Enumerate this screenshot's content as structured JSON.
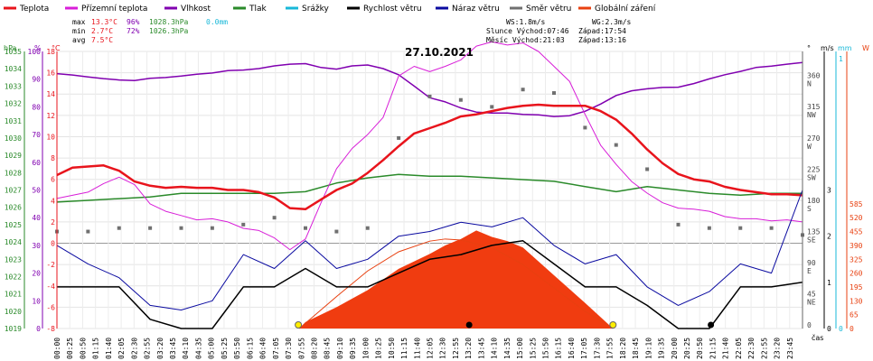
{
  "chart_data": {
    "type": "line",
    "title": "27.10.2021",
    "legend": [
      {
        "label": "Teplota",
        "color": "#e8141c"
      },
      {
        "label": "Přízemní teplota",
        "color": "#d81ed8"
      },
      {
        "label": "Vlhkost",
        "color": "#8000b0"
      },
      {
        "label": "Tlak",
        "color": "#2a8a2a"
      },
      {
        "label": "Srážky",
        "color": "#18b8d8"
      },
      {
        "label": "Rychlost větru",
        "color": "#000000"
      },
      {
        "label": "Náraz větru",
        "color": "#0a0aa0"
      },
      {
        "label": "Směr větru",
        "color": "#707070"
      },
      {
        "label": "Globální záření",
        "color": "#e84010"
      }
    ],
    "stats": {
      "max": {
        "label": "max",
        "temp": "13.3°C",
        "hum": "96%",
        "press": "1028.3hPa",
        "rain": "0.0mm"
      },
      "min": {
        "label": "min",
        "temp": "2.7°C",
        "hum": "72%",
        "press": "1026.3hPa"
      },
      "avg": {
        "label": "avg",
        "temp": "7.5°C"
      }
    },
    "info": {
      "ws": "WS:1.8m/s",
      "wg": "WG:2.3m/s",
      "sun": "Slunce Východ:07:46",
      "sun_set": "Západ:17:54",
      "moon": "Měsíc Východ:21:03",
      "moon_set": "Západ:13:16"
    },
    "axes": {
      "hpa": {
        "label": "hPa",
        "ticks": [
          "1035",
          "1034",
          "1033",
          "1032",
          "1031",
          "1030",
          "1029",
          "1028",
          "1027",
          "1026",
          "1025",
          "1024",
          "1023",
          "1022",
          "1021",
          "1020",
          "1019"
        ]
      },
      "pct": {
        "label": "%",
        "ticks": [
          "100",
          "90",
          "80",
          "70",
          "60",
          "50",
          "40",
          "30",
          "20",
          "10",
          "0"
        ]
      },
      "temp": {
        "label": "°C",
        "ticks": [
          "18",
          "16",
          "14",
          "12",
          "10",
          "8",
          "6",
          "4",
          "2",
          "0",
          "-2",
          "-4",
          "-6",
          "-8"
        ]
      },
      "dir": {
        "label": "°",
        "ticks": [
          {
            "deg": "360",
            "card": "N"
          },
          {
            "deg": "315",
            "card": "NW"
          },
          {
            "deg": "270",
            "card": "W"
          },
          {
            "deg": "225",
            "card": "SW"
          },
          {
            "deg": "180",
            "card": "S"
          },
          {
            "deg": "135",
            "card": "SE"
          },
          {
            "deg": "90",
            "card": "E"
          },
          {
            "deg": "45",
            "card": "NE"
          },
          {
            "deg": "0",
            "card": ""
          }
        ]
      },
      "ms": {
        "label": "m/s",
        "ticks": [
          "3",
          "2",
          "1",
          "0"
        ]
      },
      "mm": {
        "label": "mm",
        "ticks": [
          "1",
          "0"
        ]
      },
      "w": {
        "label": "W",
        "ticks": [
          "585",
          "520",
          "455",
          "390",
          "325",
          "260",
          "195",
          "130",
          "65",
          "0"
        ]
      },
      "x_unit": "čas",
      "x_ticks": [
        "00:00",
        "00:25",
        "00:50",
        "01:15",
        "01:40",
        "02:05",
        "02:30",
        "02:55",
        "03:20",
        "03:45",
        "04:10",
        "04:35",
        "05:00",
        "05:25",
        "05:50",
        "06:15",
        "06:40",
        "07:05",
        "07:30",
        "07:55",
        "08:20",
        "08:45",
        "09:10",
        "09:35",
        "10:00",
        "10:25",
        "10:50",
        "11:15",
        "11:40",
        "12:05",
        "12:30",
        "12:55",
        "13:20",
        "13:45",
        "14:10",
        "14:35",
        "15:00",
        "15:25",
        "15:50",
        "16:15",
        "16:40",
        "17:05",
        "17:30",
        "17:55",
        "18:20",
        "18:45",
        "19:10",
        "19:35",
        "20:00",
        "20:25",
        "20:50",
        "21:15",
        "21:40",
        "22:05",
        "22:30",
        "22:55",
        "23:20",
        "23:45"
      ]
    },
    "series": {
      "temperature": {
        "x": [
          0,
          0.5,
          1,
          1.5,
          2,
          2.5,
          3,
          3.5,
          4,
          4.5,
          5,
          5.5,
          6,
          6.5,
          7,
          7.5,
          8,
          8.5,
          9,
          9.5,
          10,
          10.5,
          11,
          11.5,
          12,
          12.5,
          13,
          13.5,
          14,
          14.5,
          15,
          15.5,
          16,
          16.5,
          17,
          17.5,
          18,
          18.5,
          19,
          19.5,
          20,
          20.5,
          21,
          21.5,
          22,
          22.5,
          23,
          23.5,
          24
        ],
        "y": [
          6.4,
          7.1,
          7.2,
          7.3,
          6.8,
          5.8,
          5.4,
          5.2,
          5.3,
          5.2,
          5.2,
          5.0,
          5.0,
          4.8,
          4.3,
          3.3,
          3.2,
          4.1,
          5.0,
          5.6,
          6.6,
          7.8,
          9.1,
          10.3,
          10.8,
          11.3,
          11.9,
          12.1,
          12.4,
          12.7,
          12.9,
          13.0,
          12.9,
          12.9,
          12.9,
          12.4,
          11.6,
          10.3,
          8.8,
          7.5,
          6.5,
          6.0,
          5.8,
          5.3,
          5.0,
          4.8,
          4.6,
          4.6,
          4.5
        ]
      },
      "ground_temp": {
        "x": [
          0,
          0.5,
          1,
          1.5,
          2,
          2.5,
          3,
          3.5,
          4,
          4.5,
          5,
          5.5,
          6,
          6.5,
          7,
          7.5,
          8,
          8.5,
          9,
          9.5,
          10,
          10.5,
          11,
          11.5,
          12,
          12.5,
          13,
          13.5,
          14,
          14.5,
          15,
          15.5,
          16,
          16.5,
          17,
          17.5,
          18,
          18.5,
          19,
          19.5,
          20,
          20.5,
          21,
          21.5,
          22,
          22.5,
          23,
          23.5,
          24
        ],
        "y": [
          4.2,
          4.5,
          4.8,
          5.6,
          6.2,
          5.5,
          3.7,
          3.0,
          2.6,
          2.2,
          2.3,
          2.0,
          1.4,
          1.2,
          0.5,
          -0.6,
          0.4,
          3.8,
          7.0,
          8.9,
          10.2,
          11.8,
          15.7,
          16.6,
          16.1,
          16.6,
          17.2,
          18.5,
          18.9,
          18.6,
          18.8,
          18.0,
          16.6,
          15.2,
          12.1,
          9.2,
          7.4,
          5.8,
          4.7,
          3.8,
          3.3,
          3.2,
          3.0,
          2.5,
          2.3,
          2.3,
          2.1,
          2.2,
          2.0
        ]
      },
      "humidity": {
        "x": [
          0,
          0.5,
          1,
          1.5,
          2,
          2.5,
          3,
          3.5,
          4,
          4.5,
          5,
          5.5,
          6,
          6.5,
          7,
          7.5,
          8,
          8.5,
          9,
          9.5,
          10,
          10.5,
          11,
          11.5,
          12,
          12.5,
          13,
          13.5,
          14,
          14.5,
          15,
          15.5,
          16,
          16.5,
          17,
          17.5,
          18,
          18.5,
          19,
          19.5,
          20,
          20.5,
          21,
          21.5,
          22,
          22.5,
          23,
          23.5,
          24
        ],
        "y": [
          92,
          91.5,
          90.8,
          90.2,
          89.7,
          89.5,
          90.3,
          90.6,
          91.1,
          91.8,
          92.2,
          93.1,
          93.3,
          93.8,
          94.8,
          95.4,
          95.6,
          94.2,
          93.6,
          94.8,
          95.1,
          93.8,
          91.6,
          87.5,
          83.3,
          81.8,
          79.6,
          78.1,
          77.8,
          77.8,
          77.3,
          77.1,
          76.5,
          76.8,
          78.4,
          81.0,
          84.1,
          85.8,
          86.5,
          87.0,
          87.1,
          88.4,
          90.1,
          91.6,
          92.8,
          94.2,
          94.7,
          95.4,
          96.0
        ]
      },
      "pressure": {
        "x": [
          0,
          1,
          2,
          3,
          4,
          5,
          6,
          7,
          8,
          9,
          10,
          11,
          12,
          13,
          14,
          15,
          16,
          17,
          18,
          19,
          20,
          21,
          22,
          23,
          24
        ],
        "y": [
          1026.3,
          1026.4,
          1026.5,
          1026.6,
          1026.8,
          1026.8,
          1026.8,
          1026.8,
          1026.9,
          1027.4,
          1027.7,
          1027.9,
          1027.8,
          1027.8,
          1027.7,
          1027.6,
          1027.5,
          1027.2,
          1026.9,
          1027.2,
          1027.0,
          1026.8,
          1026.7,
          1026.8,
          1026.8
        ]
      },
      "wind_speed": {
        "x": [
          0,
          1,
          2,
          3,
          4,
          5,
          6,
          7,
          8,
          9,
          10,
          11,
          12,
          13,
          14,
          15,
          16,
          17,
          18,
          19,
          20,
          21,
          22,
          23,
          24
        ],
        "y": [
          0.9,
          0.9,
          0.9,
          0.2,
          0.0,
          0.0,
          0.9,
          0.9,
          1.3,
          0.9,
          0.9,
          1.2,
          1.5,
          1.6,
          1.8,
          1.9,
          1.4,
          0.9,
          0.9,
          0.5,
          0.0,
          0.0,
          0.9,
          0.9,
          1.0
        ]
      },
      "wind_gust": {
        "x": [
          0,
          1,
          2,
          3,
          4,
          5,
          6,
          7,
          8,
          9,
          10,
          11,
          12,
          13,
          14,
          15,
          16,
          17,
          18,
          19,
          20,
          21,
          22,
          23,
          24
        ],
        "y": [
          1.8,
          1.4,
          1.1,
          0.5,
          0.4,
          0.6,
          1.6,
          1.3,
          1.9,
          1.3,
          1.5,
          2.0,
          2.1,
          2.3,
          2.2,
          2.4,
          1.8,
          1.4,
          1.6,
          0.9,
          0.5,
          0.8,
          1.4,
          1.2,
          3.0
        ]
      },
      "wind_dir": {
        "x": [
          0,
          1,
          2,
          3,
          4,
          5,
          6,
          7,
          8,
          9,
          10,
          11,
          12,
          13,
          14,
          15,
          16,
          17,
          18,
          19,
          20,
          21,
          22,
          23,
          24
        ],
        "y": [
          140,
          140,
          145,
          145,
          145,
          145,
          150,
          160,
          145,
          140,
          145,
          275,
          335,
          330,
          320,
          345,
          340,
          290,
          265,
          230,
          150,
          145,
          145,
          145,
          135
        ]
      },
      "radiation": {
        "x": [
          0,
          7.8,
          8,
          9,
          10,
          11,
          12,
          12.5,
          13,
          13.5,
          14,
          14.5,
          15,
          16,
          17,
          17.9,
          24
        ],
        "y": [
          0,
          0,
          30,
          100,
          180,
          280,
          350,
          390,
          420,
          460,
          430,
          410,
          380,
          250,
          120,
          0,
          0
        ]
      },
      "radiation_theory": {
        "x": [
          7.8,
          9,
          10,
          11,
          12,
          12.5,
          13,
          14,
          15,
          16,
          17,
          17.9
        ],
        "y": [
          0,
          150,
          270,
          360,
          410,
          420,
          415,
          380,
          300,
          190,
          80,
          0
        ]
      }
    }
  }
}
